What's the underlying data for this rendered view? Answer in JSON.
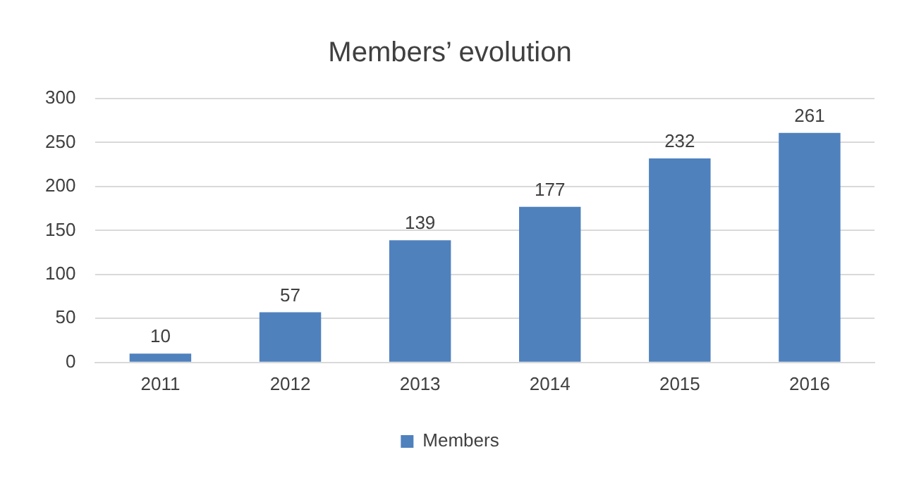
{
  "chart_data": {
    "type": "bar",
    "title": "Members’ evolution",
    "categories": [
      "2011",
      "2012",
      "2013",
      "2014",
      "2015",
      "2016"
    ],
    "series": [
      {
        "name": "Members",
        "color": "#4f81bd",
        "values": [
          10,
          57,
          139,
          177,
          232,
          261
        ]
      }
    ],
    "ylim": [
      0,
      300
    ],
    "yticks": [
      0,
      50,
      100,
      150,
      200,
      250,
      300
    ],
    "grid": "y",
    "legend": "bottom",
    "data_labels": true
  }
}
